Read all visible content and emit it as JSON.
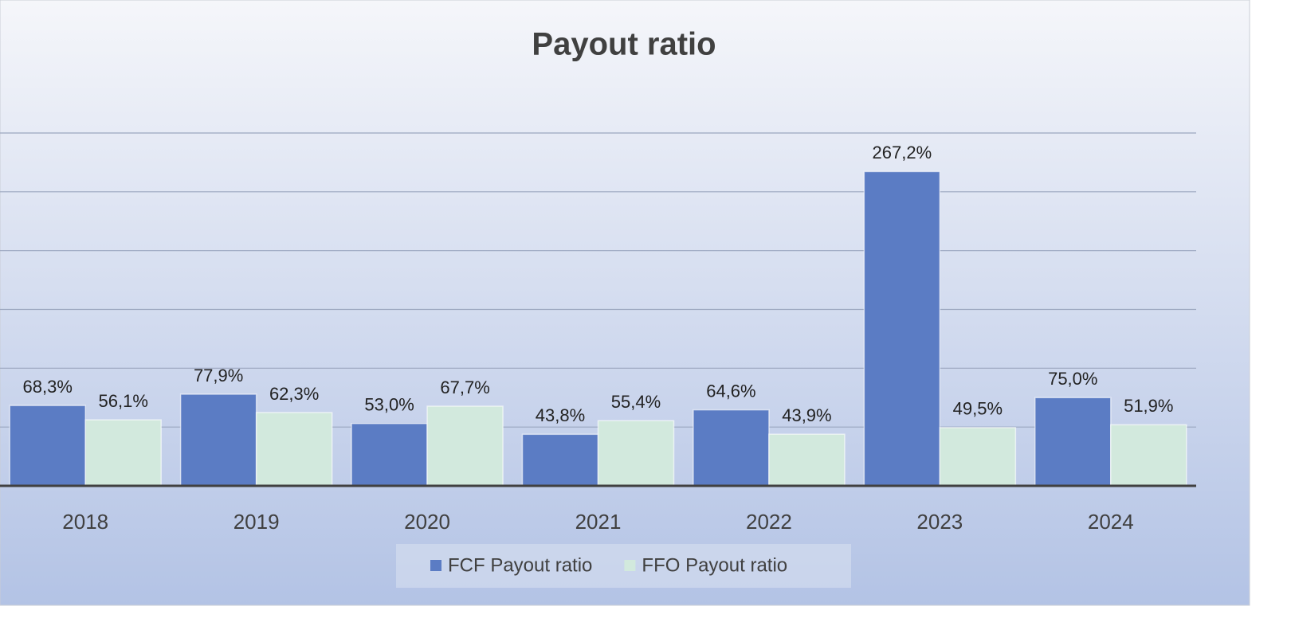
{
  "chart_data": {
    "type": "bar",
    "title": "Payout ratio",
    "categories": [
      "2018",
      "2019",
      "2020",
      "2021",
      "2022",
      "2023",
      "2024"
    ],
    "series": [
      {
        "name": "FCF Payout ratio",
        "color": "#5b7cc4",
        "values": [
          68.3,
          77.9,
          53.0,
          43.8,
          64.6,
          267.2,
          75.0
        ],
        "value_labels": [
          "68,3%",
          "77,9%",
          "53,0%",
          "43,8%",
          "64,6%",
          "267,2%",
          "75,0%"
        ]
      },
      {
        "name": "FFO Payout ratio",
        "color": "#d2e9dd",
        "values": [
          56.1,
          62.3,
          67.7,
          55.4,
          43.9,
          49.5,
          51.9
        ],
        "value_labels": [
          "56,1%",
          "62,3%",
          "67,7%",
          "55,4%",
          "43,9%",
          "49,5%",
          "51,9%"
        ]
      }
    ],
    "ylim": [
      0,
      300
    ],
    "yticks": [
      0,
      50,
      100,
      150,
      200,
      250,
      300
    ],
    "grid": true,
    "legend": "bottom"
  }
}
